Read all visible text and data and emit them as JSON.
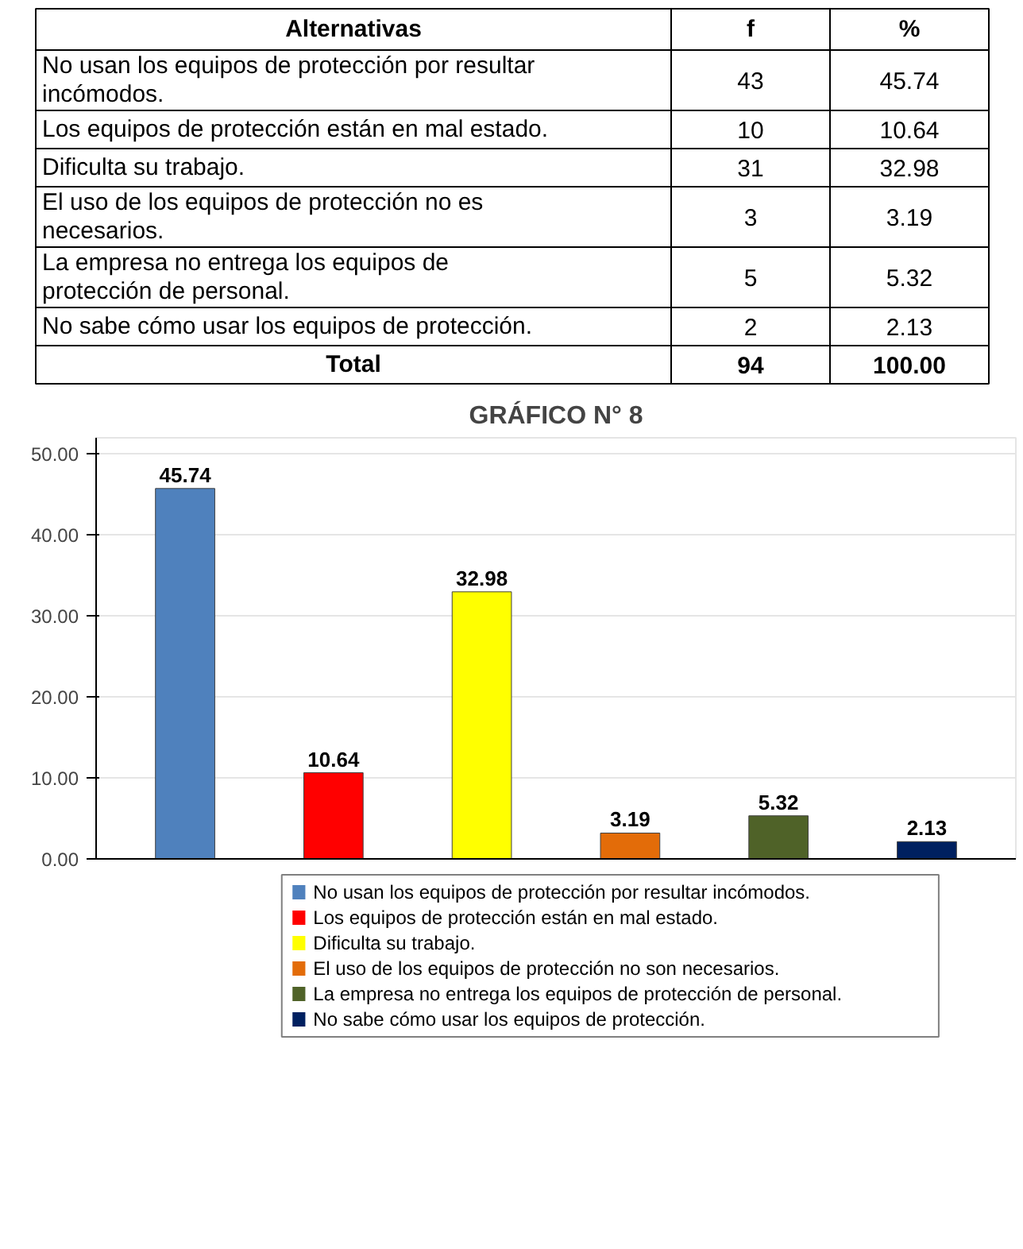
{
  "chart_data": [
    {
      "type": "other",
      "categories": [
        "Alternativas",
        "f",
        "%"
      ],
      "y_categories": [
        "No usan los equipos de protección por resultar incómodos.",
        "Los equipos de protección están en mal estado.",
        "Dificulta su trabajo.",
        "El uso de los equipos de protección no es necesarios.",
        "La empresa no entrega los equipos de protección de personal.",
        "No sabe cómo usar los equipos de protección.",
        "Total"
      ],
      "cell_labels": [
        [
          "43",
          "45.74"
        ],
        [
          "10",
          "10.64"
        ],
        [
          "31",
          "32.98"
        ],
        [
          "3",
          "3.19"
        ],
        [
          "5",
          "5.32"
        ],
        [
          "2",
          "2.13"
        ],
        [
          "94",
          "100.00"
        ]
      ]
    },
    {
      "type": "bar",
      "title": "GRÁFICO N° 8",
      "categories": [
        null,
        null,
        null,
        null,
        null,
        null
      ],
      "series": [
        {
          "name": "No usan los equipos de protección por resultar incómodos.",
          "color": "#4f81bd",
          "values": [
            45.74,
            null,
            null,
            null,
            null,
            null
          ]
        },
        {
          "name": "Los equipos de protección están en mal estado.",
          "color": "#ff0000",
          "values": [
            null,
            10.64,
            null,
            null,
            null,
            null
          ]
        },
        {
          "name": "Dificulta su trabajo.",
          "color": "#ffff00",
          "values": [
            null,
            null,
            32.98,
            null,
            null,
            null
          ]
        },
        {
          "name": "El uso de los equipos de protección no son necesarios.",
          "color": "#e36c09",
          "values": [
            null,
            null,
            null,
            3.19,
            null,
            null
          ]
        },
        {
          "name": "La empresa no entrega los equipos de protección de personal.",
          "color": "#4f6228",
          "values": [
            null,
            null,
            null,
            null,
            5.32,
            null
          ]
        },
        {
          "name": "No sabe cómo usar los equipos de protección.",
          "color": "#002060",
          "values": [
            null,
            null,
            null,
            null,
            null,
            2.13
          ]
        }
      ],
      "ylim": [
        0,
        52
      ],
      "yticks": [
        {
          "value": 0,
          "label": "0.00"
        },
        {
          "value": 10,
          "label": "10.00"
        },
        {
          "value": 20,
          "label": "20.00"
        },
        {
          "value": 30,
          "label": "30.00"
        },
        {
          "value": 40,
          "label": "40.00"
        },
        {
          "value": 50,
          "label": "50.00"
        }
      ],
      "grid": "y",
      "data_labels": true,
      "legend": "bottom"
    }
  ]
}
